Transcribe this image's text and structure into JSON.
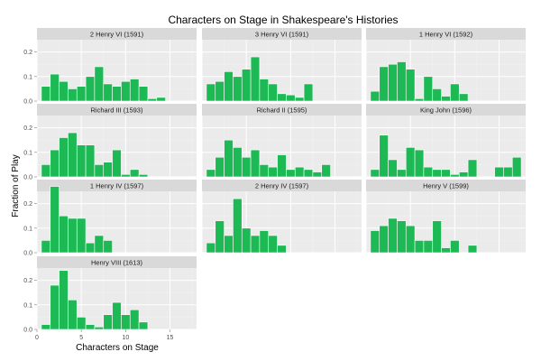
{
  "chart_data": {
    "type": "bar",
    "title": "Characters on Stage in Shakespeare's Histories",
    "xlabel": "Characters on Stage",
    "ylabel": "Fraction of Play",
    "xlim": [
      0,
      18
    ],
    "ylim": [
      0,
      0.25
    ],
    "x_ticks": [
      0,
      5,
      10,
      15
    ],
    "y_ticks": [
      0.0,
      0.1,
      0.2
    ],
    "y_tick_labels": [
      "0.0",
      "0.1",
      "0.2"
    ],
    "bar_color": "#1db954",
    "panel_background": "#ebebeb",
    "strip_background": "#d9d9d9",
    "grid": true,
    "layout": {
      "columns": 3,
      "rows": 4
    },
    "panels": [
      {
        "name": "2 Henry VI (1591)",
        "x": [
          1,
          2,
          3,
          4,
          5,
          6,
          7,
          8,
          9,
          10,
          11,
          12,
          13,
          14
        ],
        "values": [
          0.06,
          0.11,
          0.08,
          0.05,
          0.06,
          0.1,
          0.14,
          0.07,
          0.06,
          0.08,
          0.09,
          0.06,
          0.01,
          0.015
        ]
      },
      {
        "name": "3 Henry VI (1591)",
        "x": [
          1,
          2,
          3,
          4,
          5,
          6,
          7,
          8,
          9,
          10,
          11,
          12
        ],
        "values": [
          0.07,
          0.08,
          0.12,
          0.1,
          0.13,
          0.18,
          0.09,
          0.07,
          0.03,
          0.025,
          0.015,
          0.07
        ]
      },
      {
        "name": "1 Henry VI (1592)",
        "x": [
          1,
          2,
          3,
          4,
          5,
          6,
          7,
          8,
          9,
          10,
          11
        ],
        "values": [
          0.04,
          0.14,
          0.15,
          0.16,
          0.13,
          0.01,
          0.1,
          0.05,
          0.02,
          0.07,
          0.03
        ]
      },
      {
        "name": "Richard III (1593)",
        "x": [
          1,
          2,
          3,
          4,
          5,
          6,
          7,
          8,
          9,
          10,
          11,
          12
        ],
        "values": [
          0.05,
          0.11,
          0.16,
          0.18,
          0.13,
          0.13,
          0.05,
          0.06,
          0.11,
          0.01,
          0.03,
          0.01
        ]
      },
      {
        "name": "Richard II (1595)",
        "x": [
          1,
          2,
          3,
          4,
          5,
          6,
          7,
          8,
          9,
          10,
          11,
          12,
          13,
          14
        ],
        "values": [
          0.03,
          0.08,
          0.15,
          0.12,
          0.08,
          0.11,
          0.05,
          0.04,
          0.09,
          0.03,
          0.04,
          0.03,
          0.02,
          0.05
        ]
      },
      {
        "name": "King John (1596)",
        "x": [
          1,
          2,
          3,
          4,
          5,
          6,
          7,
          8,
          9,
          10,
          11,
          12,
          13,
          14,
          15,
          16,
          17
        ],
        "values": [
          0.03,
          0.17,
          0.07,
          0.03,
          0.12,
          0.11,
          0.04,
          0.03,
          0.03,
          0.01,
          0.02,
          0.07,
          0,
          0,
          0.04,
          0.04,
          0.08
        ]
      },
      {
        "name": "1 Henry IV (1597)",
        "x": [
          1,
          2,
          3,
          4,
          5,
          6,
          7,
          8
        ],
        "values": [
          0.05,
          0.27,
          0.15,
          0.14,
          0.14,
          0.04,
          0.07,
          0.05
        ]
      },
      {
        "name": "2 Henry IV (1597)",
        "x": [
          1,
          2,
          3,
          4,
          5,
          6,
          7,
          8,
          9
        ],
        "values": [
          0.04,
          0.13,
          0.07,
          0.22,
          0.1,
          0.07,
          0.09,
          0.07,
          0.03
        ]
      },
      {
        "name": "Henry V (1599)",
        "x": [
          1,
          2,
          3,
          4,
          5,
          6,
          7,
          8,
          9,
          10,
          11,
          12
        ],
        "values": [
          0.09,
          0.11,
          0.14,
          0.13,
          0.11,
          0.05,
          0.05,
          0.13,
          0.02,
          0.05,
          0,
          0.03
        ]
      },
      {
        "name": "Henry VIII (1613)",
        "x": [
          1,
          2,
          3,
          4,
          5,
          6,
          7,
          8,
          9,
          10,
          11,
          12
        ],
        "values": [
          0.02,
          0.18,
          0.24,
          0.12,
          0.05,
          0.02,
          0.01,
          0.06,
          0.11,
          0.06,
          0.08,
          0.03
        ]
      }
    ]
  }
}
